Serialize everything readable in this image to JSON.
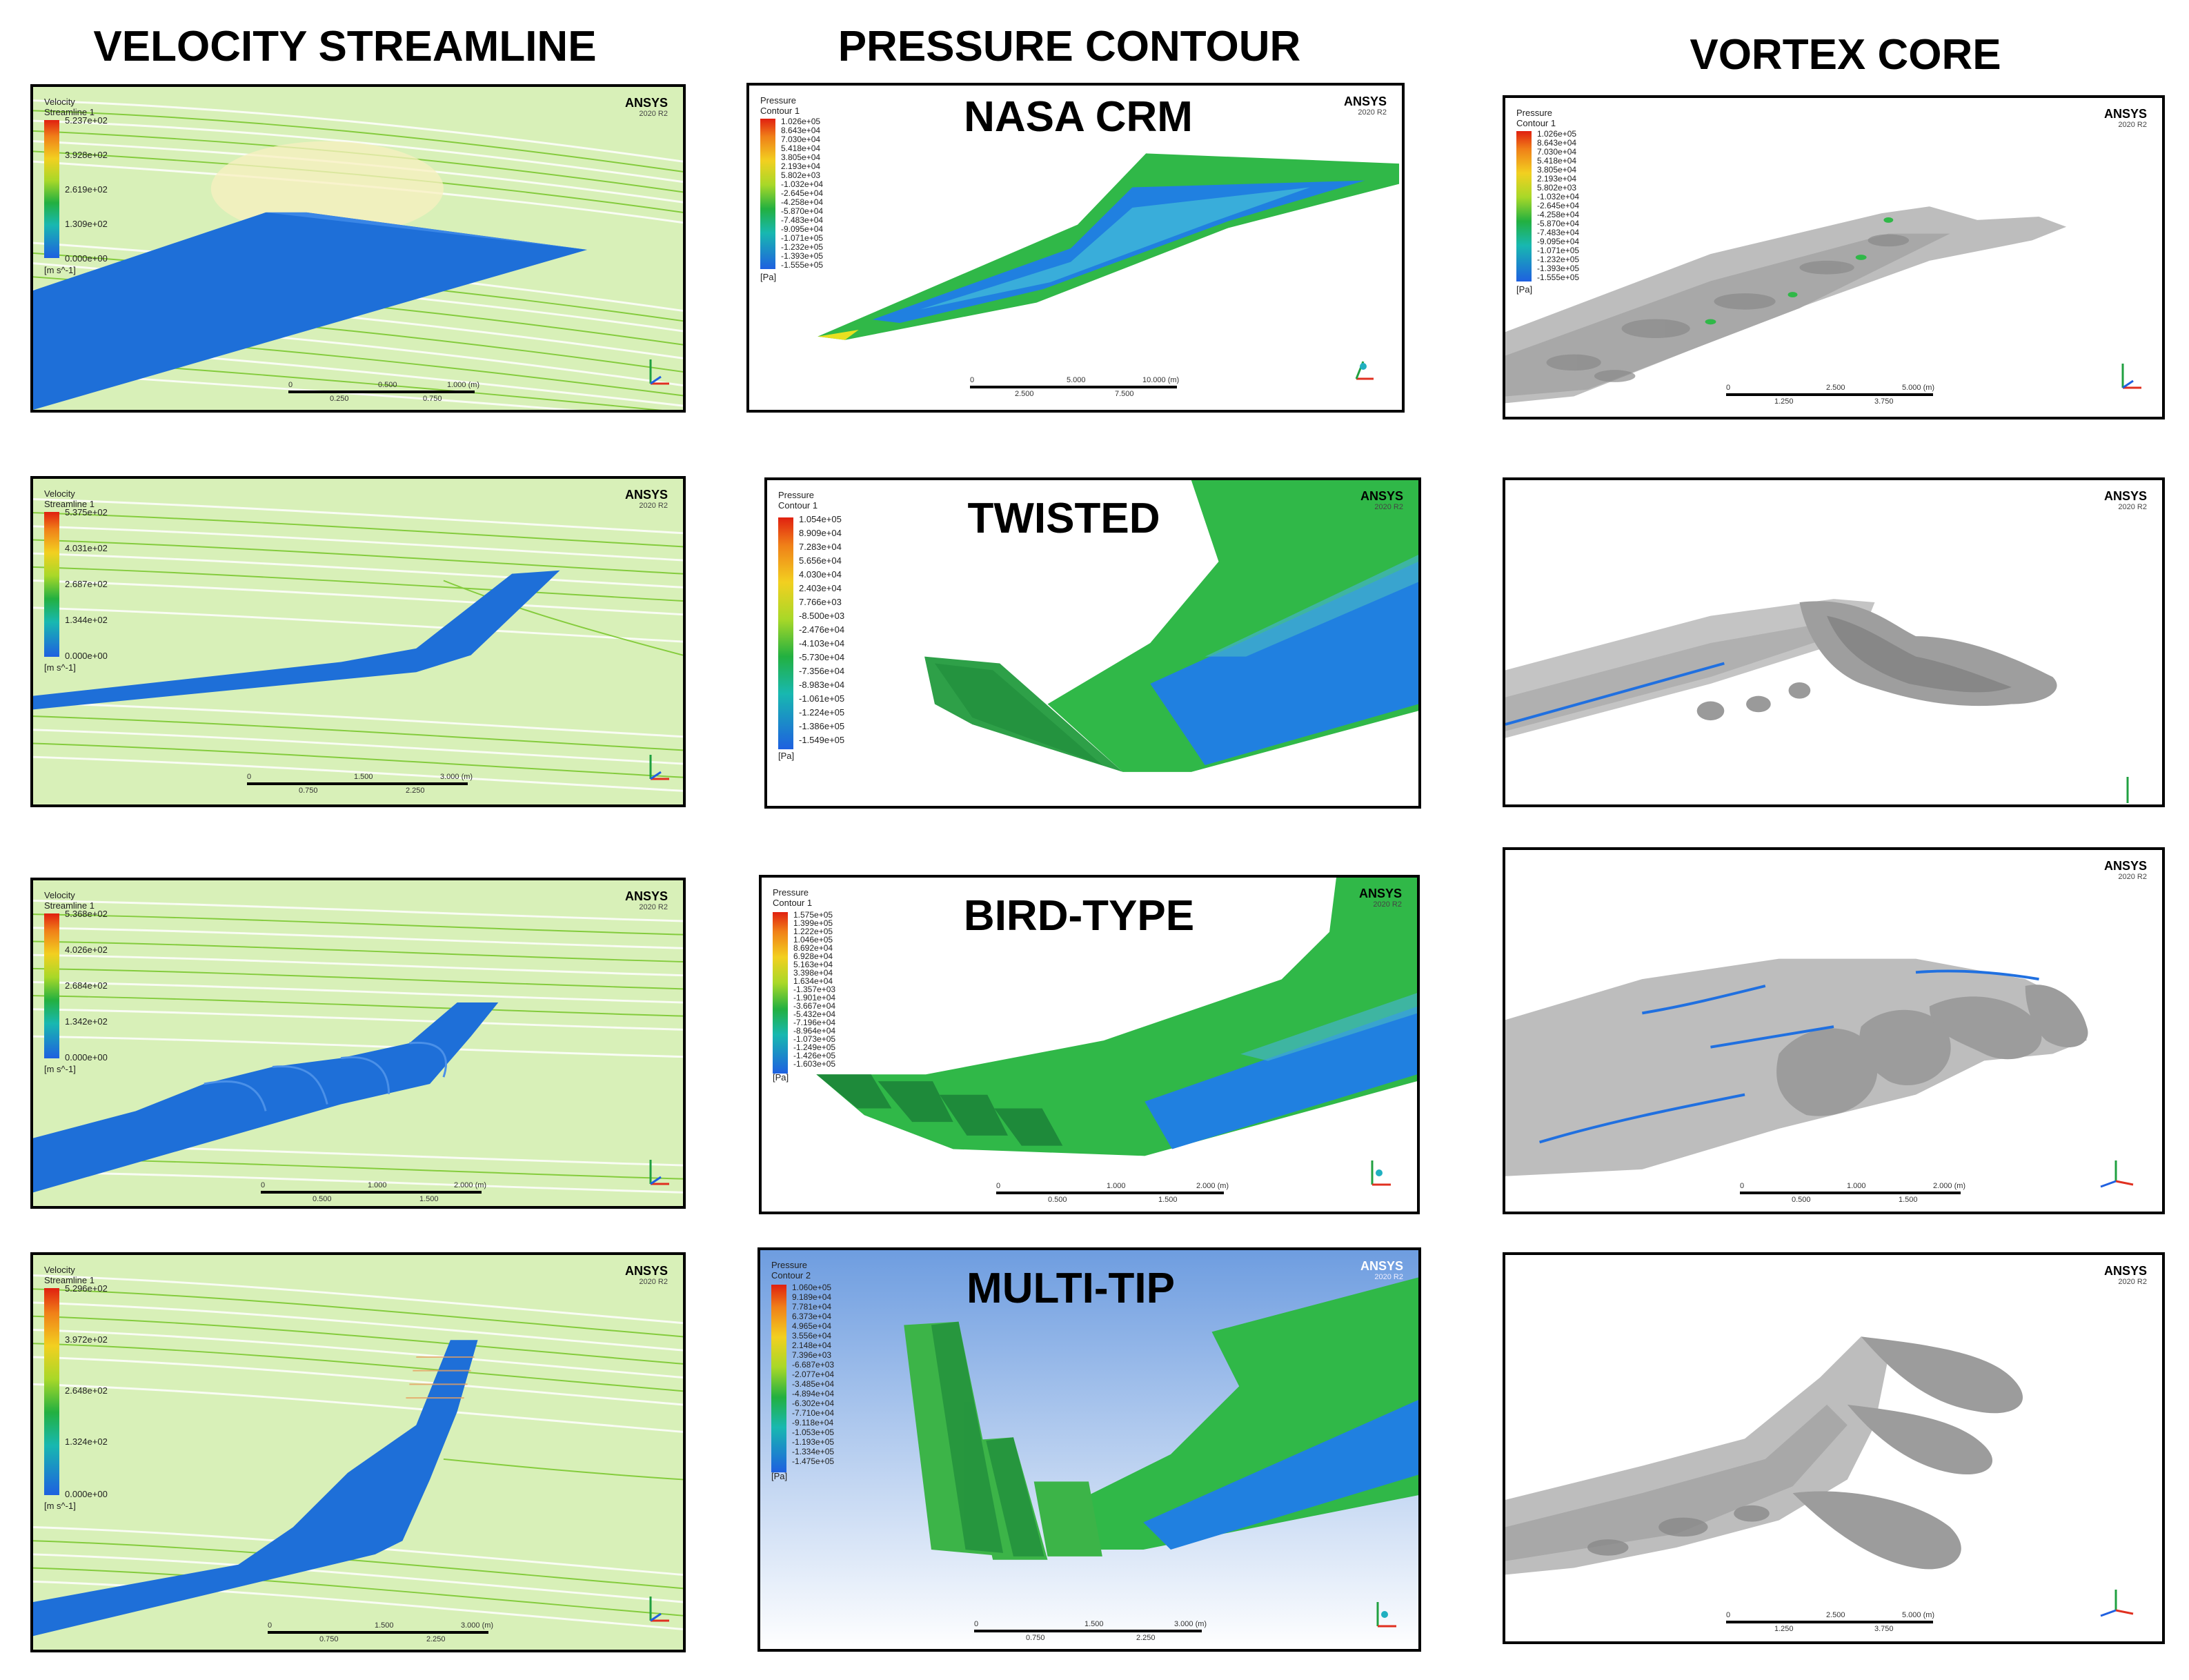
{
  "column_titles": [
    "VELOCITY STREAMLINE",
    "PRESSURE CONTOUR",
    "VORTEX CORE"
  ],
  "ansys": {
    "brand": "ANSYS",
    "version": "2020 R2"
  },
  "velocity": [
    {
      "legend_title": [
        "Velocity",
        "Streamline 1"
      ],
      "ticks": [
        "5.237e+02",
        "3.928e+02",
        "2.619e+02",
        "1.309e+02",
        "0.000e+00"
      ],
      "unit": "[m s^-1]"
    },
    {
      "legend_title": [
        "Velocity",
        "Streamline 1"
      ],
      "ticks": [
        "5.375e+02",
        "4.031e+02",
        "2.687e+02",
        "1.344e+02",
        "0.000e+00"
      ],
      "unit": "[m s^-1]"
    },
    {
      "legend_title": [
        "Velocity",
        "Streamline 1"
      ],
      "ticks": [
        "5.368e+02",
        "4.026e+02",
        "2.684e+02",
        "1.342e+02",
        "0.000e+00"
      ],
      "unit": "[m s^-1]"
    },
    {
      "legend_title": [
        "Velocity",
        "Streamline 1"
      ],
      "ticks": [
        "5.296e+02",
        "3.972e+02",
        "2.648e+02",
        "1.324e+02",
        "0.000e+00"
      ],
      "unit": "[m s^-1]"
    }
  ],
  "pressure": [
    {
      "case": "NASA CRM",
      "legend_title": [
        "Pressure",
        "Contour 1"
      ],
      "unit": "[Pa]",
      "ticks": [
        "1.026e+05",
        "8.643e+04",
        "7.030e+04",
        "5.418e+04",
        "3.805e+04",
        "2.193e+04",
        "5.802e+03",
        "-1.032e+04",
        "-2.645e+04",
        "-4.258e+04",
        "-5.870e+04",
        "-7.483e+04",
        "-9.095e+04",
        "-1.071e+05",
        "-1.232e+05",
        "-1.393e+05",
        "-1.555e+05"
      ]
    },
    {
      "case": "TWISTED",
      "legend_title": [
        "Pressure",
        "Contour 1"
      ],
      "unit": "[Pa]",
      "ticks": [
        "1.054e+05",
        "8.909e+04",
        "7.283e+04",
        "5.656e+04",
        "4.030e+04",
        "2.403e+04",
        "7.766e+03",
        "-8.500e+03",
        "-2.476e+04",
        "-4.103e+04",
        "-5.730e+04",
        "-7.356e+04",
        "-8.983e+04",
        "-1.061e+05",
        "-1.224e+05",
        "-1.386e+05",
        "-1.549e+05"
      ]
    },
    {
      "case": "BIRD-TYPE",
      "legend_title": [
        "Pressure",
        "Contour 1"
      ],
      "unit": "[Pa]",
      "ticks": [
        "1.575e+05",
        "1.399e+05",
        "1.222e+05",
        "1.046e+05",
        "8.692e+04",
        "6.928e+04",
        "5.163e+04",
        "3.398e+04",
        "1.634e+04",
        "-1.357e+03",
        "-1.901e+04",
        "-3.667e+04",
        "-5.432e+04",
        "-7.196e+04",
        "-8.964e+04",
        "-1.073e+05",
        "-1.249e+05",
        "-1.426e+05",
        "-1.603e+05"
      ]
    },
    {
      "case": "MULTI-TIP",
      "legend_title": [
        "Pressure",
        "Contour 2"
      ],
      "unit": "[Pa]",
      "ticks": [
        "1.060e+05",
        "9.189e+04",
        "7.781e+04",
        "6.373e+04",
        "4.965e+04",
        "3.556e+04",
        "2.148e+04",
        "7.396e+03",
        "-6.687e+03",
        "-2.077e+04",
        "-3.485e+04",
        "-4.894e+04",
        "-6.302e+04",
        "-7.710e+04",
        "-9.118e+04",
        "-1.053e+05",
        "-1.193e+05",
        "-1.334e+05",
        "-1.475e+05"
      ]
    }
  ],
  "vortex": [
    {
      "legend_title": [
        "Pressure",
        "Contour 1"
      ],
      "unit": "[Pa]",
      "ticks": [
        "1.026e+05",
        "8.643e+04",
        "7.030e+04",
        "5.418e+04",
        "3.805e+04",
        "2.193e+04",
        "5.802e+03",
        "-1.032e+04",
        "-2.645e+04",
        "-4.258e+04",
        "-5.870e+04",
        "-7.483e+04",
        "-9.095e+04",
        "-1.071e+05",
        "-1.232e+05",
        "-1.393e+05",
        "-1.555e+05"
      ]
    }
  ],
  "scalebars": {
    "v1": [
      "0",
      "0.500",
      "1.000 (m)",
      "0.250",
      "0.750"
    ],
    "v2": [
      "0",
      "1.500",
      "3.000 (m)",
      "0.750",
      "2.250"
    ],
    "v3": [
      "0",
      "1.000",
      "2.000 (m)",
      "0.500",
      "1.500"
    ],
    "v4": [
      "0",
      "1.500",
      "3.000 (m)",
      "0.750",
      "2.250"
    ],
    "p1": [
      "0",
      "5.000",
      "10.000 (m)",
      "2.500",
      "7.500"
    ],
    "p3": [
      "0",
      "1.000",
      "2.000 (m)",
      "0.500",
      "1.500"
    ],
    "p4": [
      "0",
      "1.500",
      "3.000 (m)",
      "0.750",
      "2.250"
    ],
    "x1": [
      "0",
      "2.500",
      "5.000 (m)",
      "1.250",
      "3.750"
    ],
    "x3": [
      "0",
      "1.000",
      "2.000 (m)",
      "0.500",
      "1.500"
    ],
    "x4": [
      "0",
      "2.500",
      "5.000 (m)",
      "1.250",
      "3.750"
    ]
  },
  "colors": {
    "wing_blue": "#1e6fd8",
    "flow_green": "#86d23a",
    "contour_green": "#30b848",
    "vortex_grey": "#bdbdbd"
  }
}
